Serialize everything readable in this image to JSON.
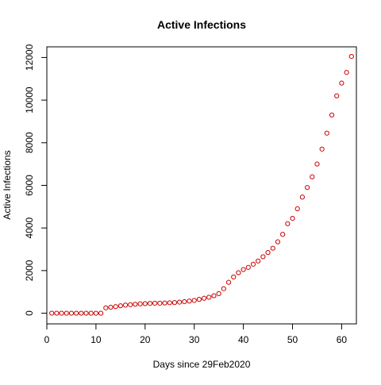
{
  "chart_data": {
    "type": "scatter",
    "title": "Active Infections",
    "xlabel": "Days since 29Feb2020",
    "ylabel": "Active Infections",
    "xlim": [
      0,
      63
    ],
    "ylim": [
      -500,
      12500
    ],
    "xticks": [
      0,
      10,
      20,
      30,
      40,
      50,
      60
    ],
    "yticks": [
      0,
      2000,
      4000,
      6000,
      8000,
      10000,
      12000
    ],
    "grid": false,
    "legend": "none",
    "marker": "open-circle",
    "series": [
      {
        "color": "#cc0000",
        "x": [
          1,
          2,
          3,
          4,
          5,
          6,
          7,
          8,
          9,
          10,
          11,
          12,
          13,
          14,
          15,
          16,
          17,
          18,
          19,
          20,
          21,
          22,
          23,
          24,
          25,
          26,
          27,
          28,
          29,
          30,
          31,
          32,
          33,
          34,
          35,
          36,
          37,
          38,
          39,
          40,
          41,
          42,
          43,
          44,
          45,
          46,
          47,
          48,
          49,
          50,
          51,
          52,
          53,
          54,
          55,
          56,
          57,
          58,
          59,
          60,
          61,
          62
        ],
        "y": [
          0,
          0,
          0,
          0,
          0,
          0,
          0,
          0,
          0,
          0,
          0,
          250,
          280,
          310,
          350,
          380,
          400,
          420,
          440,
          450,
          460,
          470,
          470,
          480,
          490,
          500,
          520,
          540,
          570,
          600,
          650,
          700,
          750,
          820,
          920,
          1150,
          1450,
          1700,
          1900,
          2050,
          2150,
          2300,
          2450,
          2650,
          2850,
          3050,
          3350,
          3700,
          4200,
          4450,
          4900,
          5450,
          5900,
          6400,
          7000,
          7700,
          8450,
          9300,
          10200,
          10800,
          11300,
          12050
        ]
      }
    ]
  }
}
